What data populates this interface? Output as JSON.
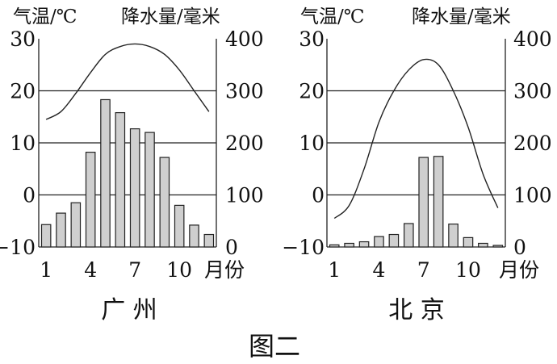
{
  "figure_title": "图二",
  "labels": {
    "temp_unit": "气温/℃",
    "precip_unit": "降水量/毫米",
    "month_unit": "月份"
  },
  "chart_data": [
    {
      "type": "bar",
      "title": "广 州",
      "ylabel": "气温/℃",
      "y2label": "降水量/毫米",
      "xlabel": "月份",
      "x": [
        1,
        2,
        3,
        4,
        5,
        6,
        7,
        8,
        9,
        10,
        11,
        12
      ],
      "x_ticks": [
        1,
        4,
        7,
        10
      ],
      "temp_ticks": [
        -10,
        0,
        10,
        20,
        30
      ],
      "precip_ticks": [
        0,
        100,
        200,
        300,
        400
      ],
      "temp_ylim": [
        -10,
        30
      ],
      "precip_ylim": [
        0,
        400
      ],
      "gridlines_temp": [
        0,
        10,
        20
      ],
      "precipitation": [
        43,
        65,
        85,
        182,
        283,
        258,
        227,
        220,
        172,
        80,
        42,
        24
      ],
      "temperature": [
        14.5,
        16,
        19.5,
        23.5,
        27,
        28.5,
        29,
        28.5,
        27,
        24,
        20,
        16
      ]
    },
    {
      "type": "bar",
      "title": "北 京",
      "ylabel": "气温/℃",
      "y2label": "降水量/毫米",
      "xlabel": "月份",
      "x": [
        1,
        2,
        3,
        4,
        5,
        6,
        7,
        8,
        9,
        10,
        11,
        12
      ],
      "x_ticks": [
        1,
        4,
        7,
        10
      ],
      "temp_ticks": [
        -10,
        0,
        10,
        20,
        30
      ],
      "precip_ticks": [
        0,
        100,
        200,
        300,
        400
      ],
      "temp_ylim": [
        -10,
        30
      ],
      "precip_ylim": [
        0,
        400
      ],
      "gridlines_temp": [
        0,
        10,
        20
      ],
      "precipitation": [
        4,
        7,
        10,
        20,
        24,
        45,
        172,
        174,
        44,
        18,
        7,
        3
      ],
      "temperature": [
        -4.5,
        -2,
        5,
        14,
        20,
        24,
        26,
        25,
        20,
        13,
        4,
        -2.5
      ]
    }
  ]
}
